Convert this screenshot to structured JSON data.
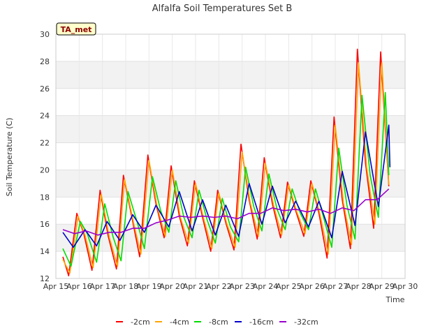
{
  "chart_data": {
    "type": "line",
    "title": "Alfalfa Soil Temperatures Set B",
    "xlabel": "Time",
    "ylabel": "Soil Temperature (C)",
    "badge": "TA_met",
    "ylim": [
      12,
      30
    ],
    "yticks": [
      12,
      14,
      16,
      18,
      20,
      22,
      24,
      26,
      28,
      30
    ],
    "xlim": [
      15,
      30
    ],
    "xticks": [
      15,
      16,
      17,
      18,
      19,
      20,
      21,
      22,
      23,
      24,
      25,
      26,
      27,
      28,
      29,
      30
    ],
    "xtick_labels": [
      "Apr 15",
      "Apr 16",
      "Apr 17",
      "Apr 18",
      "Apr 19",
      "Apr 20",
      "Apr 21",
      "Apr 22",
      "Apr 23",
      "Apr 24",
      "Apr 25",
      "Apr 26",
      "Apr 27",
      "Apr 28",
      "Apr 29",
      "Apr 30"
    ],
    "grid": true,
    "legend_position": "bottom",
    "series": [
      {
        "name": "-2cm",
        "color": "#ff0000",
        "x": [
          15.3,
          15.55,
          15.9,
          16.2,
          16.55,
          16.9,
          17.25,
          17.6,
          17.9,
          18.3,
          18.6,
          18.95,
          19.3,
          19.65,
          19.95,
          20.3,
          20.65,
          20.95,
          21.3,
          21.65,
          21.95,
          22.3,
          22.65,
          22.95,
          23.3,
          23.65,
          23.95,
          24.3,
          24.65,
          24.95,
          25.3,
          25.65,
          25.95,
          26.3,
          26.65,
          26.95,
          27.3,
          27.65,
          27.95,
          28.3,
          28.65,
          28.95,
          29.3
        ],
        "values": [
          13.6,
          12.2,
          16.8,
          15.3,
          12.6,
          18.5,
          15.1,
          12.7,
          19.6,
          16.2,
          13.6,
          21.1,
          17.5,
          15.0,
          20.3,
          16.6,
          14.4,
          19.2,
          16.5,
          14.0,
          18.5,
          16.1,
          14.1,
          21.9,
          17.8,
          14.9,
          20.9,
          17.5,
          15.0,
          19.1,
          17.0,
          15.1,
          19.2,
          16.8,
          13.5,
          23.9,
          17.8,
          14.2,
          28.9,
          20.5,
          15.7,
          28.7,
          18.8
        ]
      },
      {
        "name": "-4cm",
        "color": "#ffa500",
        "x": [
          15.3,
          15.6,
          15.95,
          16.25,
          16.6,
          16.95,
          17.3,
          17.65,
          17.95,
          18.35,
          18.65,
          19.0,
          19.35,
          19.7,
          20.0,
          20.35,
          20.7,
          21.0,
          21.35,
          21.7,
          22.0,
          22.35,
          22.7,
          23.0,
          23.35,
          23.7,
          24.0,
          24.35,
          24.7,
          25.0,
          25.35,
          25.7,
          26.0,
          26.35,
          26.7,
          27.0,
          27.35,
          27.7,
          28.0,
          28.35,
          28.7,
          29.0,
          29.3
        ],
        "values": [
          13.4,
          12.4,
          16.6,
          15.2,
          12.8,
          18.2,
          15.0,
          12.9,
          19.3,
          16.0,
          13.8,
          20.7,
          17.3,
          15.1,
          20.0,
          16.5,
          14.6,
          19.0,
          16.4,
          14.2,
          18.3,
          16.0,
          14.3,
          21.3,
          17.6,
          15.1,
          20.5,
          17.4,
          15.2,
          18.9,
          16.9,
          15.3,
          19.0,
          16.7,
          13.8,
          23.3,
          17.6,
          14.5,
          27.9,
          20.2,
          16.0,
          27.9,
          18.9
        ]
      },
      {
        "name": "-8cm",
        "color": "#00dd00",
        "x": [
          15.3,
          15.65,
          16.05,
          16.35,
          16.75,
          17.1,
          17.45,
          17.8,
          18.1,
          18.5,
          18.8,
          19.15,
          19.5,
          19.85,
          20.15,
          20.5,
          20.85,
          21.15,
          21.5,
          21.85,
          22.15,
          22.5,
          22.85,
          23.15,
          23.5,
          23.85,
          24.15,
          24.5,
          24.85,
          25.15,
          25.5,
          25.85,
          26.15,
          26.5,
          26.85,
          27.15,
          27.5,
          27.85,
          28.15,
          28.5,
          28.85,
          29.15,
          29.3
        ],
        "values": [
          14.2,
          12.9,
          16.2,
          15.3,
          13.2,
          17.5,
          15.1,
          13.3,
          18.4,
          16.1,
          14.2,
          19.5,
          17.0,
          15.4,
          19.2,
          16.5,
          15.0,
          18.5,
          16.3,
          14.6,
          17.9,
          15.8,
          14.7,
          20.2,
          17.3,
          15.5,
          19.7,
          17.1,
          15.6,
          18.6,
          16.8,
          15.6,
          18.6,
          16.5,
          14.3,
          21.6,
          17.4,
          14.9,
          25.5,
          19.6,
          16.5,
          25.7,
          19.6
        ]
      },
      {
        "name": "-16cm",
        "color": "#0000cc",
        "x": [
          15.3,
          15.75,
          16.25,
          16.75,
          17.2,
          17.75,
          18.3,
          18.8,
          19.3,
          19.85,
          20.3,
          20.85,
          21.3,
          21.85,
          22.3,
          22.85,
          23.3,
          23.85,
          24.3,
          24.85,
          25.3,
          25.85,
          26.3,
          26.85,
          27.3,
          27.85,
          28.3,
          28.85,
          29.3,
          29.35
        ],
        "values": [
          15.4,
          14.3,
          15.6,
          14.4,
          16.2,
          14.8,
          16.7,
          15.4,
          17.4,
          15.8,
          18.4,
          15.5,
          17.8,
          15.2,
          17.4,
          15.1,
          19.0,
          16.0,
          18.8,
          16.1,
          17.7,
          15.8,
          17.7,
          15.0,
          19.9,
          15.9,
          22.8,
          17.3,
          23.3,
          20.2
        ]
      },
      {
        "name": "-32cm",
        "color": "#9900cc",
        "x": [
          15.3,
          15.8,
          16.3,
          16.8,
          17.3,
          17.8,
          18.3,
          18.8,
          19.3,
          19.8,
          20.3,
          20.8,
          21.3,
          21.8,
          22.3,
          22.8,
          23.3,
          23.8,
          24.3,
          24.8,
          25.3,
          25.8,
          26.3,
          26.8,
          27.3,
          27.8,
          28.3,
          28.8,
          29.3
        ],
        "values": [
          15.6,
          15.3,
          15.5,
          15.2,
          15.4,
          15.4,
          15.7,
          15.7,
          16.1,
          16.3,
          16.6,
          16.5,
          16.6,
          16.5,
          16.6,
          16.4,
          16.8,
          16.8,
          17.2,
          17.0,
          17.1,
          16.9,
          17.1,
          16.8,
          17.2,
          17.0,
          17.8,
          17.8,
          18.6
        ]
      }
    ]
  }
}
